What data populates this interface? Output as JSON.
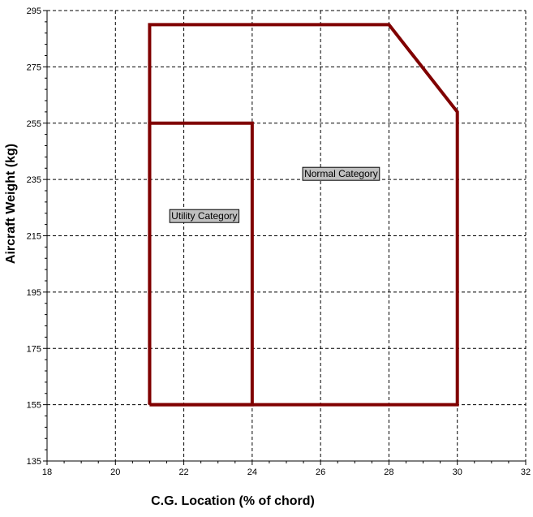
{
  "chart_data": {
    "type": "line",
    "xlabel": "C.G. Location (% of chord)",
    "ylabel": "Aircraft Weight (kg)",
    "xlim": [
      18,
      32
    ],
    "ylim": [
      135,
      295
    ],
    "x_ticks": [
      18,
      20,
      22,
      24,
      26,
      28,
      30,
      32
    ],
    "y_ticks": [
      135,
      155,
      175,
      195,
      215,
      235,
      255,
      275,
      295
    ],
    "grid": true,
    "line_color": "#800000",
    "series": [
      {
        "name": "Normal Category",
        "closed": true,
        "points": [
          [
            21,
            155
          ],
          [
            21,
            290
          ],
          [
            28,
            290
          ],
          [
            30,
            259
          ],
          [
            30,
            155
          ],
          [
            21,
            155
          ]
        ]
      },
      {
        "name": "Utility Category",
        "closed": true,
        "points": [
          [
            21,
            155
          ],
          [
            21,
            255
          ],
          [
            24,
            255
          ],
          [
            24,
            155
          ],
          [
            21,
            155
          ]
        ]
      }
    ],
    "annotations": [
      {
        "text": "Normal Category",
        "x": 26.6,
        "y": 237
      },
      {
        "text": "Utility Category",
        "x": 22.6,
        "y": 222
      }
    ]
  }
}
